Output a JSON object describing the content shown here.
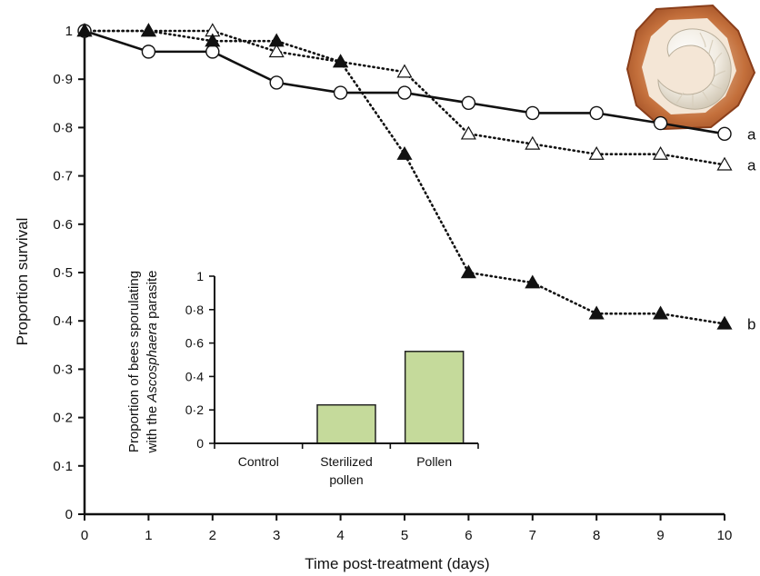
{
  "chart_data": [
    {
      "type": "line",
      "xlabel": "Time post-treatment (days)",
      "ylabel": "Proportion survival",
      "x": [
        0,
        1,
        2,
        3,
        4,
        5,
        6,
        7,
        8,
        9,
        10
      ],
      "x_ticks": [
        "0",
        "1",
        "2",
        "3",
        "4",
        "5",
        "6",
        "7",
        "8",
        "9",
        "10"
      ],
      "xlim": [
        0,
        10
      ],
      "ylim": [
        0,
        1
      ],
      "y_ticks": [
        {
          "value": 0,
          "label": "0"
        },
        {
          "value": 0.1,
          "label": "0·1"
        },
        {
          "value": 0.2,
          "label": "0·2"
        },
        {
          "value": 0.3,
          "label": "0·3"
        },
        {
          "value": 0.4,
          "label": "0·4"
        },
        {
          "value": 0.5,
          "label": "0·5"
        },
        {
          "value": 0.6,
          "label": "0·6"
        },
        {
          "value": 0.7,
          "label": "0·7"
        },
        {
          "value": 0.8,
          "label": "0·8"
        },
        {
          "value": 0.9,
          "label": "0·9"
        },
        {
          "value": 1,
          "label": "1"
        }
      ],
      "grid": false,
      "series": [
        {
          "marker": "open-circle",
          "line": "solid",
          "group_letter": "a",
          "values": [
            1.0,
            0.957,
            0.957,
            0.893,
            0.872,
            0.872,
            0.851,
            0.83,
            0.83,
            0.809,
            0.787
          ]
        },
        {
          "marker": "open-triangle",
          "line": "dotted",
          "group_letter": "a",
          "values": [
            1.0,
            1.0,
            1.0,
            0.957,
            0.936,
            0.915,
            0.787,
            0.766,
            0.745,
            0.745,
            0.723
          ]
        },
        {
          "marker": "filled-triangle",
          "line": "dotted",
          "group_letter": "b",
          "values": [
            1.0,
            1.0,
            0.979,
            0.979,
            0.936,
            0.745,
            0.5,
            0.479,
            0.415,
            0.415,
            0.394
          ]
        }
      ]
    },
    {
      "type": "bar",
      "ylabel_line1": "Proportion of bees sporulating",
      "ylabel_line2_pre": "with the ",
      "ylabel_line2_em": "Ascosphaera",
      "ylabel_line2_post": " parasite",
      "categories": [
        [
          "Control"
        ],
        [
          "Sterilized",
          "pollen"
        ],
        [
          "Pollen"
        ]
      ],
      "values": [
        0,
        0.23,
        0.55
      ],
      "ylim": [
        0,
        1
      ],
      "y_ticks": [
        {
          "value": 0,
          "label": "0"
        },
        {
          "value": 0.2,
          "label": "0·2"
        },
        {
          "value": 0.4,
          "label": "0·4"
        },
        {
          "value": 0.6,
          "label": "0·6"
        },
        {
          "value": 0.8,
          "label": "0·8"
        },
        {
          "value": 1,
          "label": "1"
        }
      ],
      "bar_color": "#c5da9b",
      "bar_stroke": "#222222"
    }
  ]
}
